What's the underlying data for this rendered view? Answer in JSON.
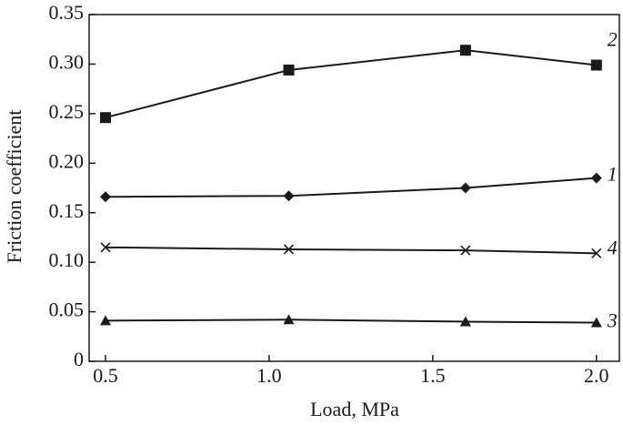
{
  "chart_data": {
    "type": "line",
    "x_label": "Load, MPa",
    "y_label": "Friction coefficient",
    "x": [
      0.5,
      1.06,
      1.6,
      2.0
    ],
    "series": [
      {
        "name": "1",
        "color": "#1a1a1a",
        "marker": "diamond",
        "values": [
          0.166,
          0.167,
          0.175,
          0.185
        ]
      },
      {
        "name": "2",
        "color": "#1a1a1a",
        "marker": "square",
        "values": [
          0.246,
          0.294,
          0.314,
          0.299
        ]
      },
      {
        "name": "3",
        "color": "#1a1a1a",
        "marker": "triangle",
        "values": [
          0.041,
          0.042,
          0.04,
          0.039
        ]
      },
      {
        "name": "4",
        "color": "#1a1a1a",
        "marker": "x",
        "values": [
          0.115,
          0.113,
          0.112,
          0.109
        ]
      }
    ],
    "xlim": [
      0.45,
      2.07
    ],
    "xticks": [
      0.5,
      {
        "value": 1,
        "label": "1.0"
      },
      1.5,
      {
        "value": 2,
        "label": "2.0"
      }
    ],
    "ylim": [
      0,
      0.35
    ],
    "yticks": [
      0,
      0.05,
      {
        "value": 0.1,
        "label": "0.10"
      },
      0.15,
      {
        "value": 0.2,
        "label": "0.20"
      },
      0.25,
      {
        "value": 0.3,
        "label": "0.30"
      },
      0.35
    ],
    "grid": false
  }
}
